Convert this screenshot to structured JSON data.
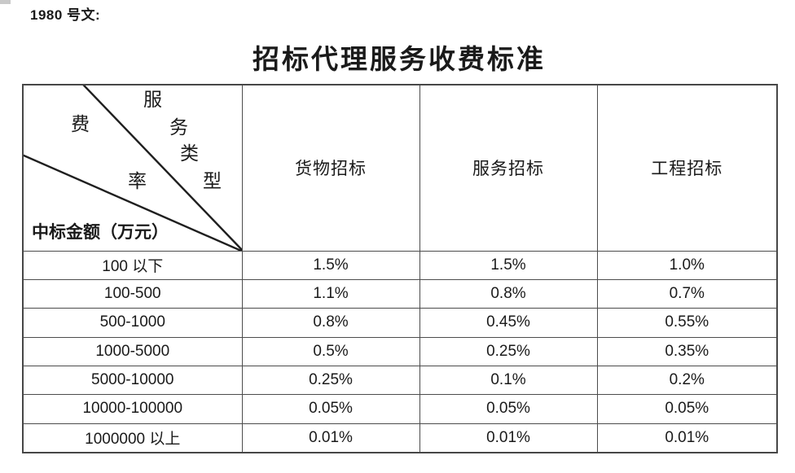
{
  "doc": {
    "ref_label": "1980 号文:",
    "title": "招标代理服务收费标准"
  },
  "table": {
    "corner": {
      "col_axis_chars": [
        "服",
        "务",
        "类",
        "型"
      ],
      "row_axis_chars": [
        "费",
        "率"
      ],
      "bottom_label": "中标金额（万元）"
    },
    "columns": [
      "货物招标",
      "服务招标",
      "工程招标"
    ],
    "rows": [
      {
        "amount": "100 以下",
        "rates": [
          "1.5%",
          "1.5%",
          "1.0%"
        ]
      },
      {
        "amount": "100-500",
        "rates": [
          "1.1%",
          "0.8%",
          "0.7%"
        ]
      },
      {
        "amount": "500-1000",
        "rates": [
          "0.8%",
          "0.45%",
          "0.55%"
        ]
      },
      {
        "amount": "1000-5000",
        "rates": [
          "0.5%",
          "0.25%",
          "0.35%"
        ]
      },
      {
        "amount": "5000-10000",
        "rates": [
          "0.25%",
          "0.1%",
          "0.2%"
        ]
      },
      {
        "amount": "10000-100000",
        "rates": [
          "0.05%",
          "0.05%",
          "0.05%"
        ]
      },
      {
        "amount": "1000000 以上",
        "rates": [
          "0.01%",
          "0.01%",
          "0.01%"
        ]
      }
    ],
    "colors": {
      "border": "#4c4c4c",
      "text": "#1a1a1a",
      "diagonal_line": "#1f1f1f"
    }
  }
}
